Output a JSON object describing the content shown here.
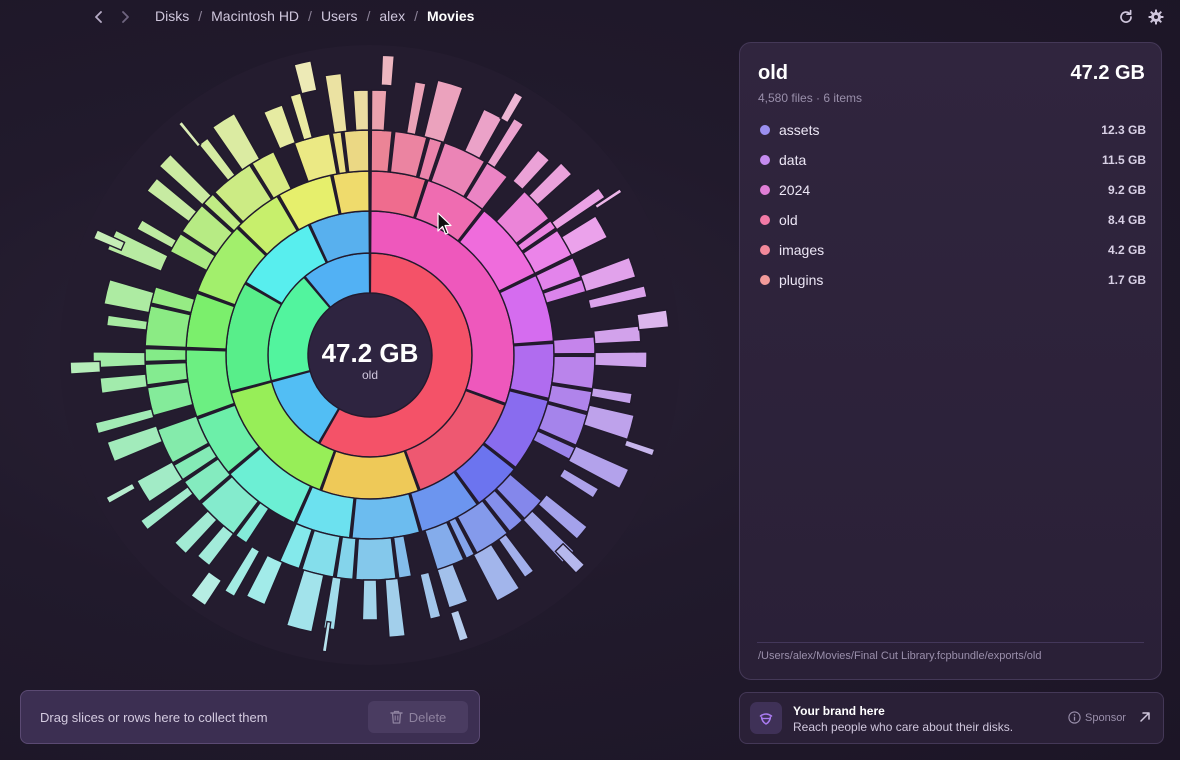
{
  "breadcrumb": [
    "Disks",
    "Macintosh HD",
    "Users",
    "alex",
    "Movies"
  ],
  "center": {
    "value": "47.2 GB",
    "label": "old"
  },
  "panel": {
    "title": "old",
    "size": "47.2 GB",
    "subtitle": "4,580 files · 6 items",
    "items": [
      {
        "name": "assets",
        "size": "12.3 GB",
        "color": "#9b8ff0"
      },
      {
        "name": "data",
        "size": "11.5 GB",
        "color": "#c58bf0"
      },
      {
        "name": "2024",
        "size": "9.2 GB",
        "color": "#e07ed6"
      },
      {
        "name": "old",
        "size": "8.4 GB",
        "color": "#f27aa6"
      },
      {
        "name": "images",
        "size": "4.2 GB",
        "color": "#f2889a"
      },
      {
        "name": "plugins",
        "size": "1.7 GB",
        "color": "#f29a9a"
      }
    ],
    "path": "/Users/alex/Movies/Final Cut Library.fcpbundle/exports/old"
  },
  "dropzone": {
    "text": "Drag slices or rows here to collect them",
    "delete_label": "Delete"
  },
  "sponsor": {
    "title": "Your brand here",
    "description": "Reach people who care about their disks.",
    "badge": "Sponsor"
  },
  "icons": {
    "back": "chevron-left-icon",
    "forward": "chevron-right-icon",
    "refresh": "refresh-icon",
    "settings": "gear-icon",
    "trash": "trash-icon",
    "sponsor": "acorn-icon",
    "info": "info-icon",
    "external": "arrow-up-right-icon"
  }
}
